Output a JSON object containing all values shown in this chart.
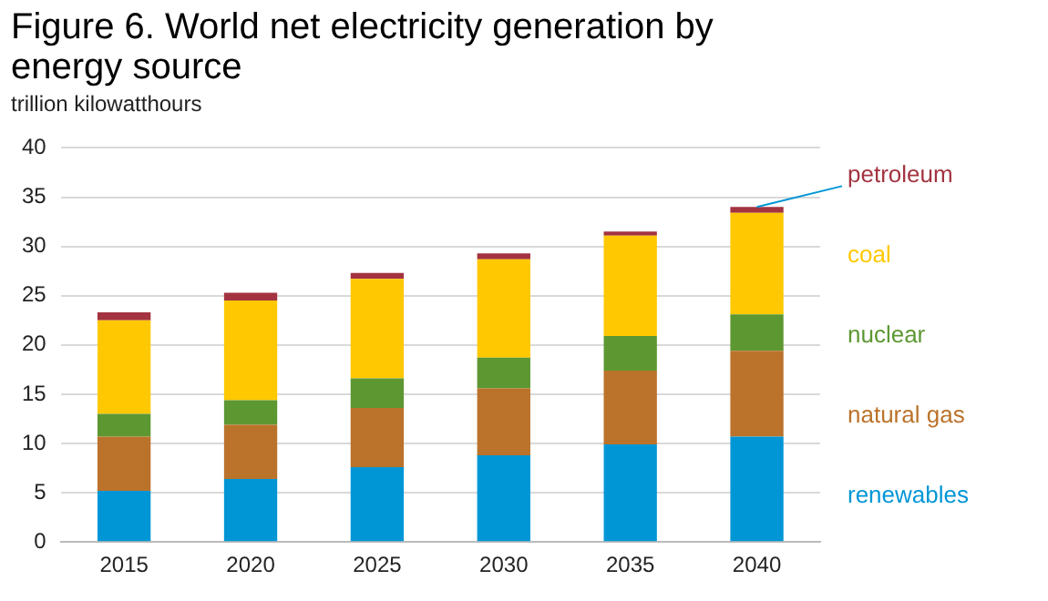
{
  "chart_data": {
    "type": "bar",
    "title": "Figure 6. World net electricity generation by energy source",
    "ylabel": "trillion kilowatthours",
    "categories": [
      "2015",
      "2020",
      "2025",
      "2030",
      "2035",
      "2040"
    ],
    "stacked": true,
    "ylim": [
      0,
      40
    ],
    "yticks": [
      0,
      5,
      10,
      15,
      20,
      25,
      30,
      35,
      40
    ],
    "grid": "y",
    "legend": "right",
    "series": [
      {
        "name": "renewables",
        "color": "#0096d6",
        "values": [
          5.2,
          6.4,
          7.6,
          8.8,
          9.9,
          10.7
        ]
      },
      {
        "name": "natural gas",
        "color": "#bb722a",
        "values": [
          5.5,
          5.5,
          6.0,
          6.8,
          7.5,
          8.7
        ]
      },
      {
        "name": "nuclear",
        "color": "#5d9732",
        "values": [
          2.3,
          2.5,
          3.0,
          3.1,
          3.5,
          3.7
        ]
      },
      {
        "name": "coal",
        "color": "#ffc800",
        "values": [
          9.5,
          10.1,
          10.1,
          10.0,
          10.2,
          10.3
        ]
      },
      {
        "name": "petroleum",
        "color": "#a33340",
        "values": [
          0.8,
          0.8,
          0.6,
          0.6,
          0.4,
          0.6
        ]
      }
    ]
  }
}
